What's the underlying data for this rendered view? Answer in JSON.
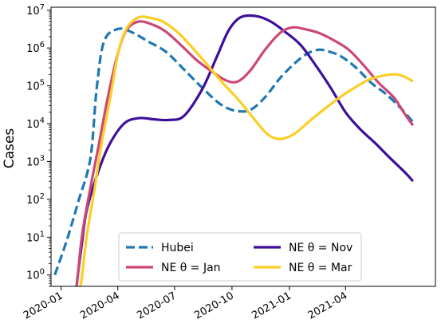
{
  "chart_data": {
    "type": "line",
    "title": "",
    "xlabel": "",
    "ylabel": "Cases",
    "y_scale": "log",
    "xlim": [
      "2019-12-16",
      "2021-08-23"
    ],
    "ylim": [
      0.5,
      12000000
    ],
    "x_ticks": [
      {
        "date": "2020-01-01",
        "label": "2020-01"
      },
      {
        "date": "2020-04-01",
        "label": "2020-04"
      },
      {
        "date": "2020-07-01",
        "label": "2020-07"
      },
      {
        "date": "2020-10-01",
        "label": "2020-10"
      },
      {
        "date": "2021-01-01",
        "label": "2021-01"
      },
      {
        "date": "2021-04-01",
        "label": "2021-04"
      }
    ],
    "y_ticks": [
      {
        "value": 1,
        "label": "10^0"
      },
      {
        "value": 10,
        "label": "10^1"
      },
      {
        "value": 100,
        "label": "10^2"
      },
      {
        "value": 1000,
        "label": "10^3"
      },
      {
        "value": 10000,
        "label": "10^4"
      },
      {
        "value": 100000,
        "label": "10^5"
      },
      {
        "value": 1000000,
        "label": "10^6"
      },
      {
        "value": 10000000,
        "label": "10^7"
      }
    ],
    "grid": false,
    "legend_position": "lower center",
    "series": [
      {
        "name": "Hubei",
        "color": "#1f77b4",
        "dash": "dashed",
        "x": [
          "2019-12-22",
          "2020-01-10",
          "2020-01-29",
          "2020-02-17",
          "2020-02-27",
          "2020-03-10",
          "2020-04-02",
          "2020-04-26",
          "2020-05-19",
          "2020-06-17",
          "2020-07-16",
          "2020-08-14",
          "2020-09-12",
          "2020-10-06",
          "2020-10-30",
          "2020-11-23",
          "2020-12-17",
          "2021-01-10",
          "2021-01-29",
          "2021-02-17",
          "2021-03-06",
          "2021-03-25",
          "2021-04-18",
          "2021-05-12",
          "2021-06-05",
          "2021-06-29",
          "2021-07-18"
        ],
        "y": [
          1.0,
          8,
          90,
          1200,
          80000,
          1500000,
          3200000,
          2500000,
          1500000,
          800000,
          270000,
          90000,
          33000,
          22000,
          23000,
          50000,
          160000,
          400000,
          700000,
          900000,
          800000,
          600000,
          300000,
          120000,
          60000,
          25000,
          11000
        ]
      },
      {
        "name": "NE θ = Nov",
        "color": "#3f0f9b",
        "dash": "solid",
        "x": [
          "2020-01-26",
          "2020-01-28",
          "2020-02-04",
          "2020-02-11",
          "2020-02-27",
          "2020-03-17",
          "2020-04-11",
          "2020-05-05",
          "2020-05-29",
          "2020-06-22",
          "2020-07-16",
          "2020-08-14",
          "2020-09-07",
          "2020-09-26",
          "2020-10-15",
          "2020-11-08",
          "2020-12-02",
          "2020-12-26",
          "2021-01-19",
          "2021-02-12",
          "2021-03-08",
          "2021-04-01",
          "2021-04-25",
          "2021-05-19",
          "2021-06-12",
          "2021-07-06",
          "2021-07-18"
        ],
        "y": [
          0.5,
          1.0,
          8,
          50,
          400,
          2500,
          10000,
          14000,
          13000,
          12500,
          16000,
          80000,
          600000,
          3000000,
          6500000,
          7000000,
          5000000,
          2600000,
          1200000,
          350000,
          90000,
          20000,
          7000,
          3000,
          1200,
          500,
          300
        ]
      },
      {
        "name": "NE θ = Jan",
        "color": "#cc4778",
        "dash": "solid",
        "x": [
          "2020-01-26",
          "2020-01-28",
          "2020-02-04",
          "2020-02-17",
          "2020-03-01",
          "2020-03-17",
          "2020-04-01",
          "2020-04-15",
          "2020-05-05",
          "2020-05-29",
          "2020-06-17",
          "2020-07-11",
          "2020-08-04",
          "2020-08-28",
          "2020-09-21",
          "2020-10-10",
          "2020-10-30",
          "2020-11-23",
          "2020-12-17",
          "2021-01-05",
          "2021-01-24",
          "2021-02-17",
          "2021-03-13",
          "2021-04-06",
          "2021-04-30",
          "2021-05-24",
          "2021-06-17",
          "2021-07-06",
          "2021-07-18"
        ],
        "y": [
          0.5,
          1.0,
          12,
          200,
          2500,
          60000,
          700000,
          3000000,
          5000000,
          4000000,
          2700000,
          1200000,
          500000,
          250000,
          140000,
          130000,
          250000,
          900000,
          2500000,
          3500000,
          3200000,
          2500000,
          1600000,
          900000,
          350000,
          120000,
          50000,
          17000,
          9000
        ]
      },
      {
        "name": "NE θ = Mar",
        "color": "#fccd25",
        "dash": "solid",
        "x": [
          "2020-02-01",
          "2020-02-04",
          "2020-02-11",
          "2020-02-24",
          "2020-03-06",
          "2020-03-20",
          "2020-04-02",
          "2020-04-16",
          "2020-05-05",
          "2020-05-24",
          "2020-06-12",
          "2020-07-06",
          "2020-07-30",
          "2020-08-23",
          "2020-09-16",
          "2020-10-10",
          "2020-11-03",
          "2020-11-23",
          "2020-12-07",
          "2020-12-21",
          "2021-01-10",
          "2021-02-03",
          "2021-02-27",
          "2021-03-23",
          "2021-04-16",
          "2021-05-10",
          "2021-06-03",
          "2021-06-22",
          "2021-07-06",
          "2021-07-18"
        ],
        "y": [
          0.5,
          1.0,
          10,
          200,
          3000,
          50000,
          800000,
          3500000,
          6500000,
          6200000,
          5000000,
          2600000,
          1000000,
          350000,
          120000,
          45000,
          15000,
          6000,
          4200,
          4000,
          5500,
          12000,
          25000,
          50000,
          90000,
          150000,
          190000,
          200000,
          170000,
          130000
        ]
      }
    ]
  }
}
